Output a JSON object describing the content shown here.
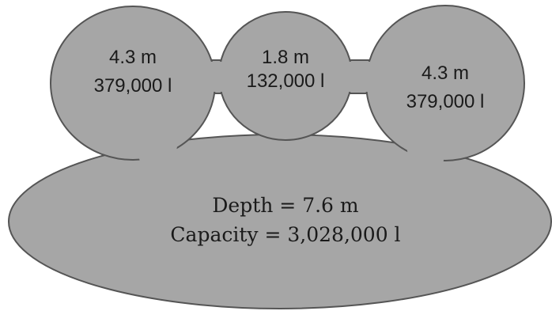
{
  "pools": {
    "left": {
      "depth": "4.3 m",
      "capacity": "379,000 l"
    },
    "middle": {
      "depth": "1.8 m",
      "capacity": "132,000 l"
    },
    "right": {
      "depth": "4.3 m",
      "capacity": "379,000 l"
    },
    "main": {
      "depth": "Depth = 7.6 m",
      "capacity": "Capacity = 3,028,000 l"
    }
  },
  "colors": {
    "fill": "#a6a6a6",
    "stroke": "#555555",
    "text": "#1a1a1a"
  }
}
